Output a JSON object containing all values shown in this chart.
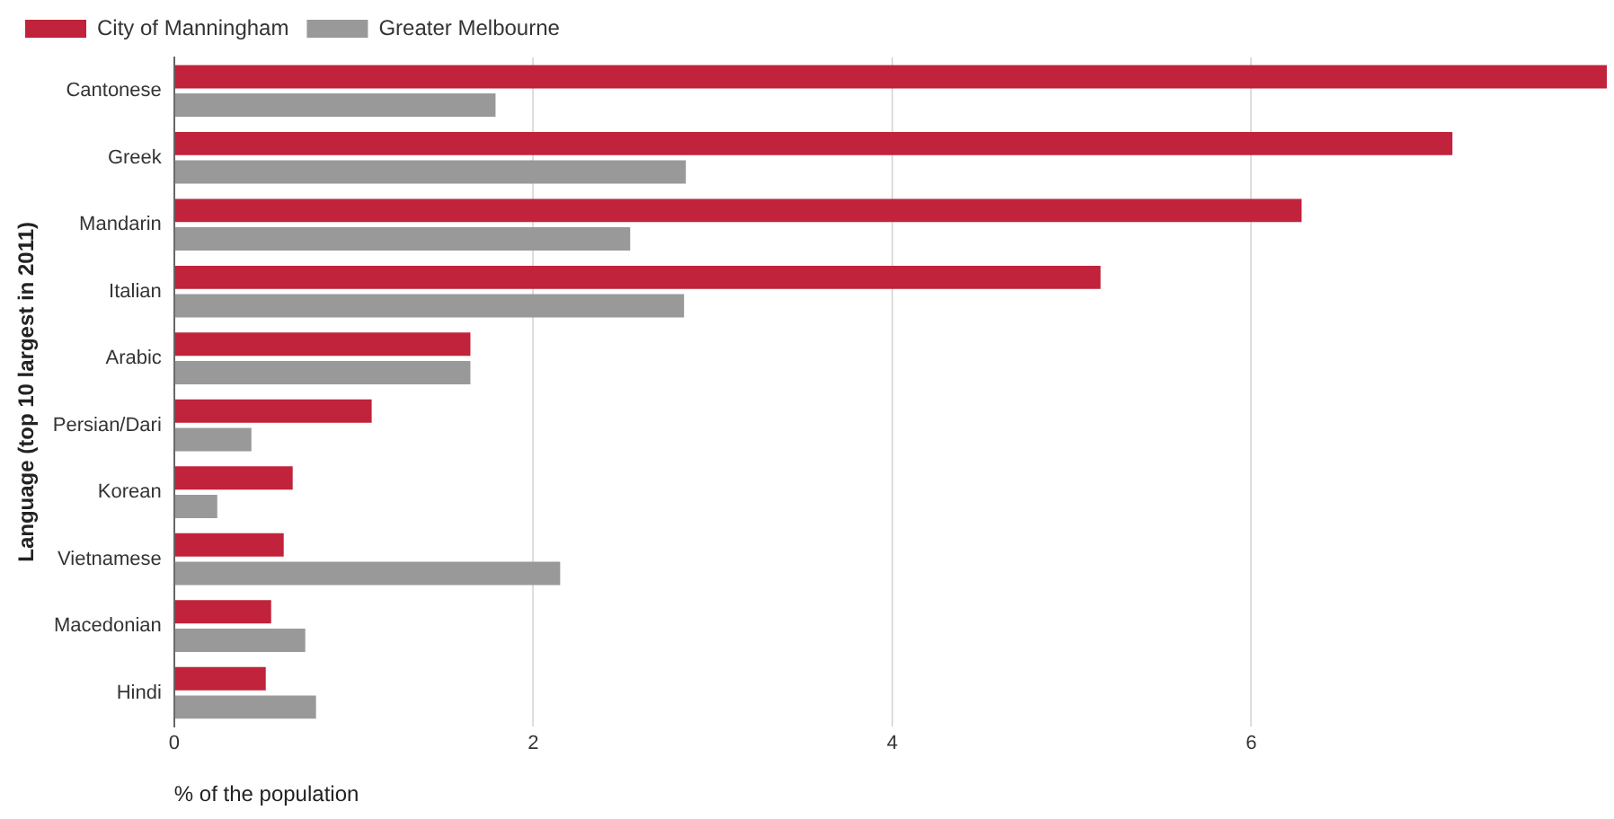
{
  "chart_data": {
    "type": "bar",
    "orientation": "horizontal",
    "xlabel": "% of the population",
    "ylabel": "Language (top 10 largest in 2011)",
    "categories": [
      "Cantonese",
      "Greek",
      "Mandarin",
      "Italian",
      "Arabic",
      "Persian/Dari",
      "Korean",
      "Vietnamese",
      "Macedonian",
      "Hindi"
    ],
    "series": [
      {
        "name": "City of Manningham",
        "color": "#c0233b",
        "values": [
          7.98,
          7.12,
          6.28,
          5.16,
          1.65,
          1.1,
          0.66,
          0.61,
          0.54,
          0.51
        ]
      },
      {
        "name": "Greater Melbourne",
        "color": "#999999",
        "values": [
          1.79,
          2.85,
          2.54,
          2.84,
          1.65,
          0.43,
          0.24,
          2.15,
          0.73,
          0.79
        ]
      }
    ],
    "xlim": [
      0,
      8
    ],
    "xticks": [
      0,
      2,
      4,
      6
    ],
    "grid": "x",
    "legend": "top left"
  }
}
